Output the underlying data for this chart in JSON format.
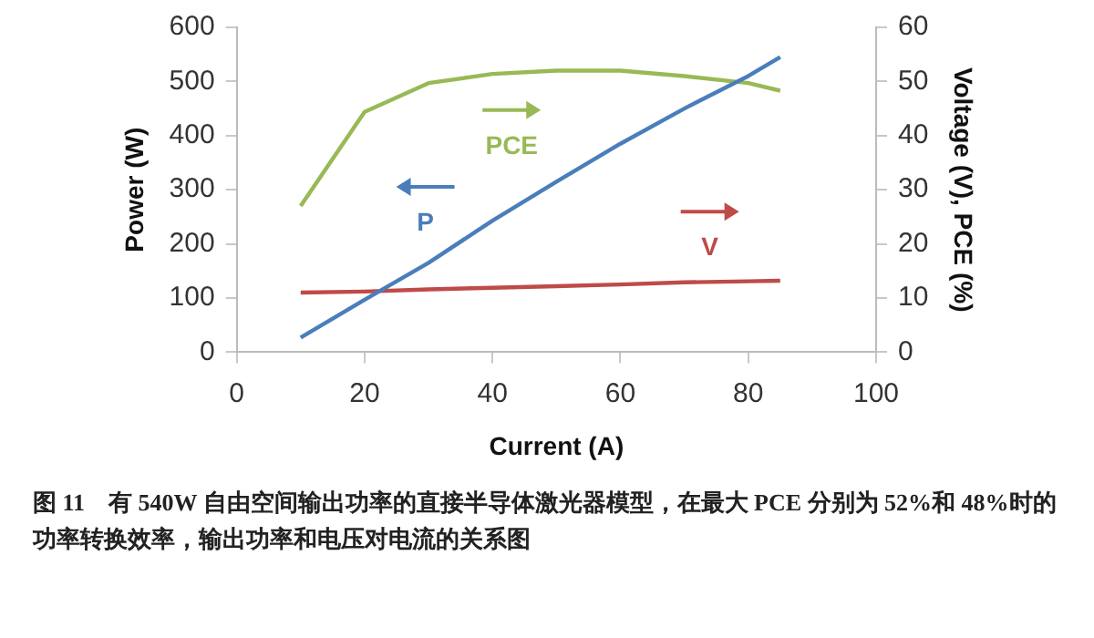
{
  "chart_data": {
    "type": "line",
    "xlabel": "Current (A)",
    "ylabel": "Power (W)",
    "y2label": "Voltage (V), PCE (%)",
    "x": [
      10,
      20,
      30,
      40,
      50,
      60,
      70,
      80,
      85
    ],
    "series": [
      {
        "name": "P",
        "color": "#4a7ebb",
        "values": [
          27,
          97,
          165,
          243,
          315,
          385,
          450,
          510,
          545
        ]
      },
      {
        "name": "V",
        "color": "#be4b48",
        "axis": "y2",
        "values": [
          11,
          11.2,
          11.6,
          11.9,
          12.2,
          12.5,
          12.9,
          13.1,
          13.2
        ]
      },
      {
        "name": "PCE",
        "color": "#98b954",
        "axis": "y2",
        "values": [
          27,
          44.4,
          49.7,
          51.4,
          52,
          52,
          51,
          49.7,
          48.3
        ]
      }
    ],
    "xlim": [
      0,
      100
    ],
    "xticks": [
      0,
      20,
      40,
      60,
      80,
      100
    ],
    "ylim": [
      0,
      600
    ],
    "yticks": [
      0,
      100,
      200,
      300,
      400,
      500,
      600
    ],
    "y2lim": [
      0,
      60
    ],
    "y2ticks": [
      0,
      10,
      20,
      30,
      40,
      50,
      60
    ],
    "grid": false,
    "legend": "top",
    "marker": "none",
    "line_style": "solid",
    "annotations": [
      "图 11　有 540W 自由空间输出功率的直接半导体激光器模型，在最大 PCE 分别为 52%和 48%时的功率转换效率，输出功率和电压对电流的关系图"
    ]
  }
}
